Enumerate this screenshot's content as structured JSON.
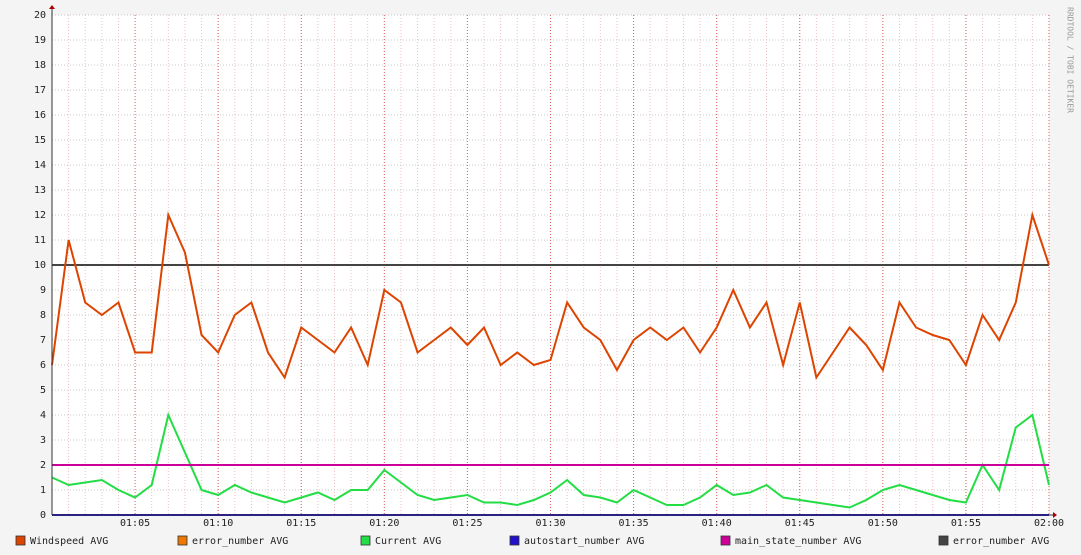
{
  "chart_data": {
    "type": "line",
    "watermark": "RRDTOOL / TOBI OETIKER",
    "x": [
      "01:00",
      "01:01",
      "01:02",
      "01:03",
      "01:04",
      "01:05",
      "01:06",
      "01:07",
      "01:08",
      "01:09",
      "01:10",
      "01:11",
      "01:12",
      "01:13",
      "01:14",
      "01:15",
      "01:16",
      "01:17",
      "01:18",
      "01:19",
      "01:20",
      "01:21",
      "01:22",
      "01:23",
      "01:24",
      "01:25",
      "01:26",
      "01:27",
      "01:28",
      "01:29",
      "01:30",
      "01:31",
      "01:32",
      "01:33",
      "01:34",
      "01:35",
      "01:36",
      "01:37",
      "01:38",
      "01:39",
      "01:40",
      "01:41",
      "01:42",
      "01:43",
      "01:44",
      "01:45",
      "01:46",
      "01:47",
      "01:48",
      "01:49",
      "01:50",
      "01:51",
      "01:52",
      "01:53",
      "01:54",
      "01:55",
      "01:56",
      "01:57",
      "01:58",
      "01:59",
      "02:00"
    ],
    "xlim": [
      "01:00",
      "02:00"
    ],
    "xticks": [
      "01:05",
      "01:10",
      "01:15",
      "01:20",
      "01:25",
      "01:30",
      "01:35",
      "01:40",
      "01:45",
      "01:50",
      "01:55",
      "02:00"
    ],
    "ylim": [
      0,
      20
    ],
    "yticks": [
      0,
      1,
      2,
      3,
      4,
      5,
      6,
      7,
      8,
      9,
      10,
      11,
      12,
      13,
      14,
      15,
      16,
      17,
      18,
      19,
      20
    ],
    "grid": true,
    "legend": "bottom",
    "series": [
      {
        "name": "Windspeed AVG",
        "color": "#dd4400",
        "values": [
          6,
          11,
          8.5,
          8,
          8.5,
          6.5,
          6.5,
          12,
          10.5,
          7.2,
          6.5,
          8,
          8.5,
          6.5,
          5.5,
          7.5,
          7,
          6.5,
          7.5,
          6,
          9,
          8.5,
          6.5,
          7,
          7.5,
          6.8,
          7.5,
          6,
          6.5,
          6,
          6.2,
          8.5,
          7.5,
          7,
          5.8,
          7,
          7.5,
          7,
          7.5,
          6.5,
          7.5,
          9,
          7.5,
          8.5,
          6,
          8.5,
          5.5,
          6.5,
          7.5,
          6.8,
          5.8,
          8.5,
          7.5,
          7.2,
          7,
          6,
          8,
          7,
          8.5,
          12,
          10
        ]
      },
      {
        "name": "error_number AVG",
        "color": "#ee7700",
        "values": [
          0,
          0,
          0,
          0,
          0,
          0,
          0,
          0,
          0,
          0,
          0,
          0,
          0,
          0,
          0,
          0,
          0,
          0,
          0,
          0,
          0,
          0,
          0,
          0,
          0,
          0,
          0,
          0,
          0,
          0,
          0,
          0,
          0,
          0,
          0,
          0,
          0,
          0,
          0,
          0,
          0,
          0,
          0,
          0,
          0,
          0,
          0,
          0,
          0,
          0,
          0,
          0,
          0,
          0,
          0,
          0,
          0,
          0,
          0,
          0,
          0
        ]
      },
      {
        "name": "Current AVG",
        "color": "#22dd44",
        "values": [
          1.5,
          1.2,
          1.3,
          1.4,
          1,
          0.7,
          1.2,
          4,
          2.5,
          1,
          0.8,
          1.2,
          0.9,
          0.7,
          0.5,
          0.7,
          0.9,
          0.6,
          1,
          1,
          1.8,
          1.3,
          0.8,
          0.6,
          0.7,
          0.8,
          0.5,
          0.5,
          0.4,
          0.6,
          0.9,
          1.4,
          0.8,
          0.7,
          0.5,
          1,
          0.7,
          0.4,
          0.4,
          0.7,
          1.2,
          0.8,
          0.9,
          1.2,
          0.7,
          0.6,
          0.5,
          0.4,
          0.3,
          0.6,
          1,
          1.2,
          1,
          0.8,
          0.6,
          0.5,
          2,
          1,
          3.5,
          4,
          1.2
        ]
      },
      {
        "name": "autostart_number AVG",
        "color": "#2211cc",
        "values": [
          0,
          0,
          0,
          0,
          0,
          0,
          0,
          0,
          0,
          0,
          0,
          0,
          0,
          0,
          0,
          0,
          0,
          0,
          0,
          0,
          0,
          0,
          0,
          0,
          0,
          0,
          0,
          0,
          0,
          0,
          0,
          0,
          0,
          0,
          0,
          0,
          0,
          0,
          0,
          0,
          0,
          0,
          0,
          0,
          0,
          0,
          0,
          0,
          0,
          0,
          0,
          0,
          0,
          0,
          0,
          0,
          0,
          0,
          0,
          0,
          0
        ]
      },
      {
        "name": "main_state_number AVG",
        "color": "#cc0099",
        "values": [
          2,
          2,
          2,
          2,
          2,
          2,
          2,
          2,
          2,
          2,
          2,
          2,
          2,
          2,
          2,
          2,
          2,
          2,
          2,
          2,
          2,
          2,
          2,
          2,
          2,
          2,
          2,
          2,
          2,
          2,
          2,
          2,
          2,
          2,
          2,
          2,
          2,
          2,
          2,
          2,
          2,
          2,
          2,
          2,
          2,
          2,
          2,
          2,
          2,
          2,
          2,
          2,
          2,
          2,
          2,
          2,
          2,
          2,
          2,
          2,
          2
        ]
      },
      {
        "name": "error_number AVG",
        "color": "#444444",
        "values": [
          10,
          10,
          10,
          10,
          10,
          10,
          10,
          10,
          10,
          10,
          10,
          10,
          10,
          10,
          10,
          10,
          10,
          10,
          10,
          10,
          10,
          10,
          10,
          10,
          10,
          10,
          10,
          10,
          10,
          10,
          10,
          10,
          10,
          10,
          10,
          10,
          10,
          10,
          10,
          10,
          10,
          10,
          10,
          10,
          10,
          10,
          10,
          10,
          10,
          10,
          10,
          10,
          10,
          10,
          10,
          10,
          10,
          10,
          10,
          10,
          10
        ]
      }
    ]
  }
}
